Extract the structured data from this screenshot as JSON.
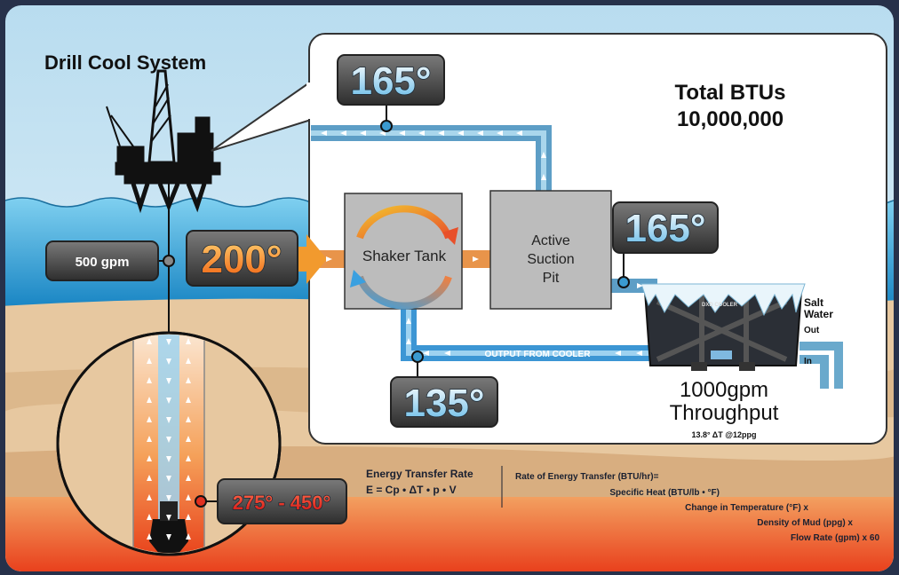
{
  "title": "Drill Cool System",
  "total_btus": {
    "label": "Total BTUs",
    "value": "10,000,000"
  },
  "temperatures": {
    "return_top": "165°",
    "pit_outlet": "165°",
    "inlet": "200°",
    "cooler_output": "135°",
    "bit": "275° - 450°"
  },
  "flow_in": "500 gpm",
  "shaker_tank": "Shaker Tank",
  "active_pit": [
    "Active",
    "Suction",
    "Pit"
  ],
  "cooler": {
    "brand": "DXD COOLER",
    "salt_water": [
      "Salt",
      "Water"
    ],
    "out": "Out",
    "in": "In",
    "throughput": [
      "1000gpm",
      "Throughput"
    ],
    "spec": "13.8° ΔT @12ppg",
    "output_label": "OUTPUT FROM COOLER"
  },
  "formula": {
    "title": "Energy Transfer Rate",
    "equation": "E = Cp • ΔT • p • V",
    "definition": [
      "Rate of Energy Transfer (BTU/hr)=",
      "Specific Heat (BTU/lb • °F)",
      "Change in Temperature (°F) x",
      "Density of Mud (ppg) x",
      "Flow Rate (gpm) x 60"
    ]
  }
}
